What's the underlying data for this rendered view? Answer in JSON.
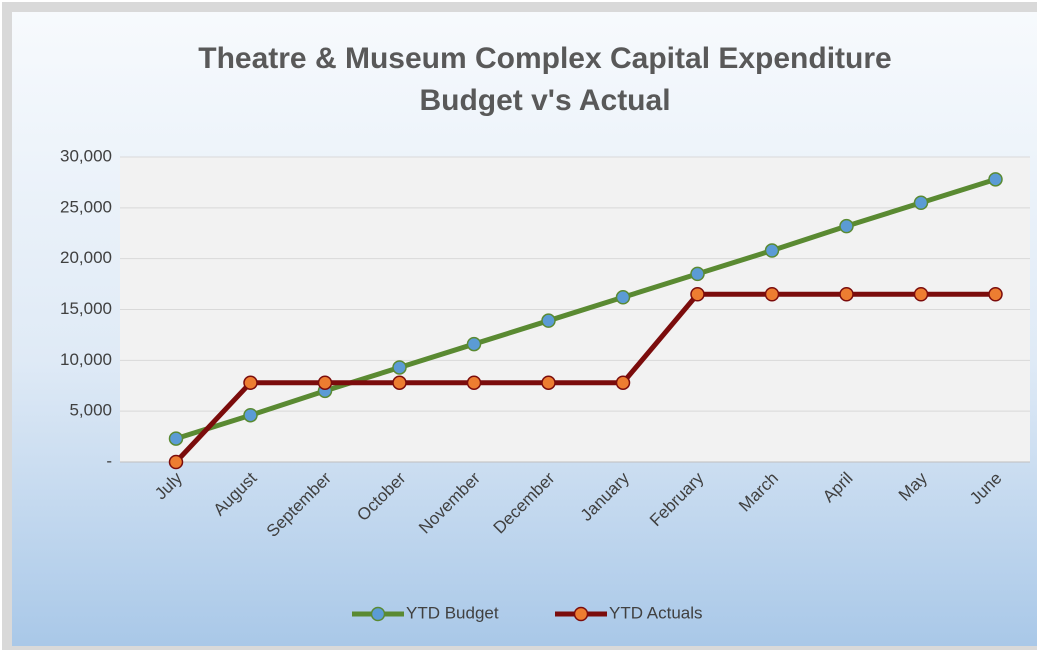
{
  "chart_data": {
    "type": "line",
    "title": [
      "Theatre & Museum Complex Capital Expenditure",
      "Budget v's Actual"
    ],
    "categories": [
      "July",
      "August",
      "September",
      "October",
      "November",
      "December",
      "January",
      "February",
      "March",
      "April",
      "May",
      "June"
    ],
    "series": [
      {
        "name": "YTD Budget",
        "color": "#5a8a32",
        "marker_color": "#5b9bd5",
        "values": [
          2300,
          4600,
          7000,
          9300,
          11600,
          13900,
          16200,
          18500,
          20800,
          23200,
          25500,
          27800
        ]
      },
      {
        "name": "YTD Actuals",
        "color": "#7b0c0c",
        "marker_color": "#ed7d31",
        "values": [
          0,
          7800,
          7800,
          7800,
          7800,
          7800,
          7800,
          16500,
          16500,
          16500,
          16500,
          16500
        ]
      }
    ],
    "ylim": [
      0,
      30000
    ],
    "yticks": [
      {
        "value": 0,
        "label": "-"
      },
      {
        "value": 5000,
        "label": "5,000"
      },
      {
        "value": 10000,
        "label": "10,000"
      },
      {
        "value": 15000,
        "label": "15,000"
      },
      {
        "value": 20000,
        "label": "20,000"
      },
      {
        "value": 25000,
        "label": "25,000"
      },
      {
        "value": 30000,
        "label": "30,000"
      }
    ],
    "grid": true,
    "legend": "bottom"
  }
}
